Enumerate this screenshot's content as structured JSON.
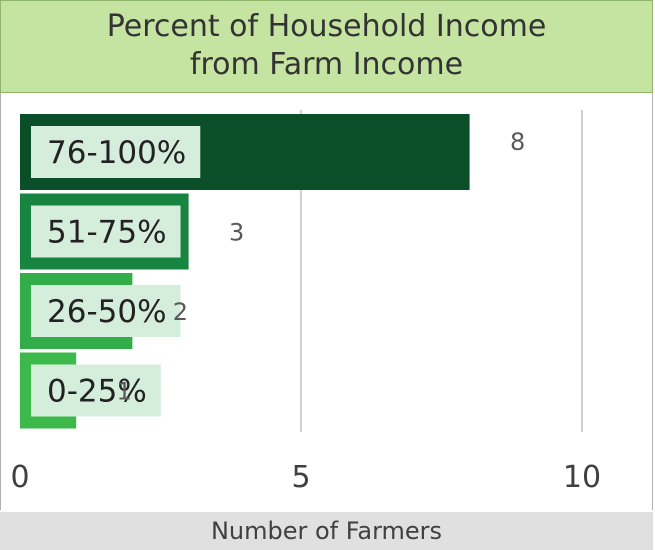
{
  "chart_data": {
    "type": "bar",
    "orientation": "horizontal",
    "title": "Percent of Household Income\nfrom Farm Income",
    "xlabel": "Number of Farmers",
    "ylabel": "",
    "categories": [
      "76-100%",
      "51-75%",
      "26-50%",
      "0-25%"
    ],
    "values": [
      8,
      3,
      2,
      1
    ],
    "xlim": [
      0,
      11
    ],
    "xticks": [
      0,
      5,
      10
    ],
    "grid": true,
    "colors": {
      "bars": [
        "#0b4f29",
        "#17843f",
        "#33ac4a",
        "#3db84a"
      ],
      "label_box": "#d5eedc",
      "title_bg": "#c5e4a1",
      "xlabel_bg": "#e0e0e0",
      "gridline": "#d0d0d0"
    }
  }
}
